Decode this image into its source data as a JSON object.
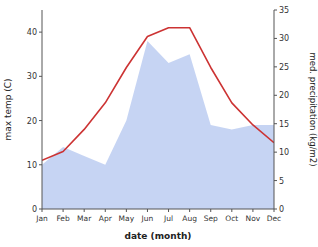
{
  "chart_data": {
    "type": "line",
    "categories": [
      "Jan",
      "Feb",
      "Mar",
      "Apr",
      "May",
      "Jun",
      "Jul",
      "Aug",
      "Sep",
      "Oct",
      "Nov",
      "Dec"
    ],
    "series": [
      {
        "type": "area",
        "color": "#b8c9f0",
        "values": [
          10,
          14,
          12,
          10,
          20,
          38,
          33,
          35,
          19,
          18,
          19,
          19
        ]
      },
      {
        "type": "line",
        "color": "#cc3333",
        "values": [
          11,
          13,
          18,
          24,
          32,
          39,
          41,
          41,
          32,
          24,
          19,
          15
        ]
      }
    ],
    "x_label": "date (month)",
    "y_label": "max temp (C)",
    "y2_label": "med. precipitation (kg/m2)",
    "ylim": [
      0,
      45
    ],
    "yticks": [
      0,
      10,
      20,
      30,
      40
    ],
    "y2lim": [
      0,
      35
    ],
    "y2ticks": [
      0,
      5,
      10,
      15,
      20,
      25,
      30,
      35
    ],
    "grid": false
  }
}
